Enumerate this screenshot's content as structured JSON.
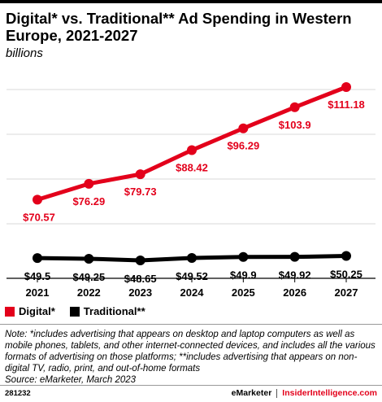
{
  "header": {
    "title": "Digital* vs. Traditional** Ad Spending in Western Europe, 2021-2027",
    "subtitle": "billions"
  },
  "colors": {
    "digital": "#e3001b",
    "traditional": "#000000",
    "grid": "#d9d9d9"
  },
  "chart_data": {
    "type": "line",
    "categories": [
      "2021",
      "2022",
      "2023",
      "2024",
      "2025",
      "2026",
      "2027"
    ],
    "series": [
      {
        "name": "Digital*",
        "values": [
          70.57,
          76.29,
          79.73,
          88.42,
          96.29,
          103.9,
          111.18
        ],
        "labels": [
          "$70.57",
          "$76.29",
          "$79.73",
          "$88.42",
          "$96.29",
          "$103.9",
          "$111.18"
        ]
      },
      {
        "name": "Traditional**",
        "values": [
          49.5,
          49.25,
          48.65,
          49.52,
          49.9,
          49.92,
          50.25
        ],
        "labels": [
          "$49.5",
          "$49.25",
          "$48.65",
          "$49.52",
          "$49.9",
          "$49.92",
          "$50.25"
        ]
      }
    ],
    "legend_position": "bottom-left"
  },
  "note": "Note: *includes advertising that appears on desktop and laptop computers as well as mobile phones, tablets, and other internet-connected devices, and includes all the various formats of advertising on those platforms; **includes advertising that appears on non-digital TV, radio, print, and out-of-home formats",
  "source": "Source: eMarketer, March 2023",
  "footer": {
    "chart_id": "281232",
    "brand": "eMarketer",
    "site": "InsiderIntelligence.com"
  }
}
